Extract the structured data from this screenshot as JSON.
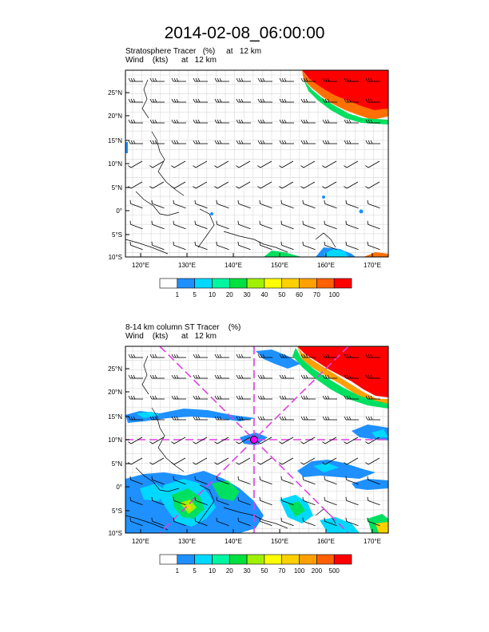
{
  "title": "2014-02-08_06:00:00",
  "panels": [
    {
      "line1": "Stratosphere Tracer   (%)     at   12 km",
      "line2": "Wind    (kts)      at   12 km",
      "lat_labels": [
        "25°N",
        "20°N",
        "15°N",
        "10°N",
        "5°N",
        "0°",
        "5°S",
        "10°S"
      ],
      "lon_labels": [
        "120°E",
        "130°E",
        "140°E",
        "150°E",
        "160°E",
        "170°E"
      ],
      "colorbar_labels": [
        "1",
        "5",
        "10",
        "20",
        "30",
        "40",
        "50",
        "60",
        "70",
        "100"
      ],
      "colors": [
        "#ffffff",
        "#1e90ff",
        "#00d8ff",
        "#00f5a0",
        "#00e040",
        "#a0f000",
        "#ffff00",
        "#ffd000",
        "#ffa000",
        "#ff6000",
        "#ff0000"
      ]
    },
    {
      "line1": "8-14 km column ST Tracer    (%)",
      "line2": "Wind    (kts)      at   12 km",
      "lat_labels": [
        "25°N",
        "20°N",
        "15°N",
        "10°N",
        "5°N",
        "0°",
        "5°S",
        "10°S"
      ],
      "lon_labels": [
        "120°E",
        "130°E",
        "140°E",
        "150°E",
        "160°E",
        "170°E"
      ],
      "colorbar_labels": [
        "1",
        "5",
        "10",
        "20",
        "30",
        "50",
        "70",
        "100",
        "200",
        "500"
      ],
      "colors": [
        "#ffffff",
        "#1e90ff",
        "#00d8ff",
        "#00f5a0",
        "#00e040",
        "#a0f000",
        "#ffff00",
        "#ffd000",
        "#ffa000",
        "#ff6000",
        "#ff0000"
      ]
    }
  ]
}
